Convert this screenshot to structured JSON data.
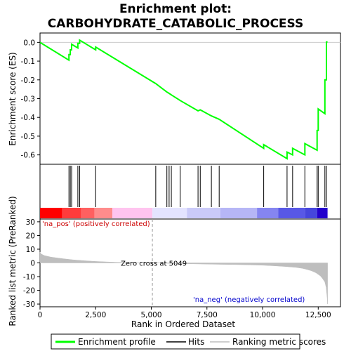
{
  "chart_data": {
    "type": "line",
    "title_line1": "Enrichment plot:",
    "title_line2": "CARBOHYDRATE_CATABOLIC_PROCESS",
    "top_panel": {
      "ylabel": "Enrichment score (ES)",
      "ylim": [
        -0.65,
        0.05
      ],
      "yticks": [
        0.0,
        -0.1,
        -0.2,
        -0.3,
        -0.4,
        -0.5,
        -0.6
      ],
      "ytick_labels": [
        "0.0",
        "-0.1",
        "-0.2",
        "-0.3",
        "-0.4",
        "-0.5",
        "-0.6"
      ],
      "series": [
        {
          "name": "Enrichment profile",
          "color": "#00ff00",
          "x": [
            0,
            1300,
            1300,
            1360,
            1360,
            1420,
            1420,
            1700,
            1700,
            1780,
            1780,
            2500,
            2500,
            5200,
            5700,
            5800,
            5900,
            6300,
            7100,
            7200,
            7700,
            8050,
            10050,
            10050,
            11100,
            11100,
            11350,
            11350,
            11900,
            11900,
            12450,
            12450,
            12500,
            12500,
            12800,
            12800,
            12870,
            12870,
            12920
          ],
          "y": [
            0.0,
            -0.095,
            -0.065,
            -0.065,
            -0.04,
            -0.04,
            -0.01,
            -0.03,
            -0.005,
            -0.005,
            0.012,
            -0.04,
            -0.025,
            -0.22,
            -0.265,
            -0.272,
            -0.28,
            -0.31,
            -0.365,
            -0.36,
            -0.392,
            -0.41,
            -0.565,
            -0.545,
            -0.62,
            -0.585,
            -0.6,
            -0.565,
            -0.6,
            -0.54,
            -0.575,
            -0.47,
            -0.47,
            -0.355,
            -0.38,
            -0.2,
            -0.2,
            0.002,
            0.002
          ]
        }
      ]
    },
    "hits": [
      1300,
      1360,
      1420,
      1700,
      1780,
      2500,
      5200,
      5700,
      5800,
      5900,
      6300,
      7100,
      7200,
      7700,
      8050,
      10050,
      11100,
      11350,
      11900,
      12450,
      12500,
      12800,
      12870
    ],
    "color_bar": {
      "segments": [
        {
          "from": 0,
          "to": 1000,
          "color": "#ff0000"
        },
        {
          "from": 1000,
          "to": 1850,
          "color": "#ff3b3b"
        },
        {
          "from": 1850,
          "to": 2450,
          "color": "#ff6060"
        },
        {
          "from": 2450,
          "to": 3250,
          "color": "#ff8c8c"
        },
        {
          "from": 3250,
          "to": 5050,
          "color": "#ffc4ef"
        },
        {
          "from": 5050,
          "to": 6600,
          "color": "#e4e4ff"
        },
        {
          "from": 6600,
          "to": 8100,
          "color": "#cacaf8"
        },
        {
          "from": 8100,
          "to": 9750,
          "color": "#b6b6f6"
        },
        {
          "from": 9750,
          "to": 10700,
          "color": "#8585f0"
        },
        {
          "from": 10700,
          "to": 11900,
          "color": "#5858e6"
        },
        {
          "from": 11900,
          "to": 12450,
          "color": "#4646dc"
        },
        {
          "from": 12450,
          "to": 12920,
          "color": "#2200cc"
        }
      ]
    },
    "bottom_panel": {
      "ylabel": "Ranked list metric (PreRanked)",
      "xlabel": "Rank in Ordered Dataset",
      "ylim": [
        -32,
        32
      ],
      "yticks": [
        30,
        20,
        10,
        0,
        -10,
        -20,
        -30
      ],
      "ytick_labels": [
        "30",
        "20",
        "10",
        "0",
        "-10",
        "-20",
        "-30"
      ],
      "metric_color": "#bebebe",
      "metric": {
        "x": [
          0,
          50,
          200,
          500,
          1000,
          1500,
          2000,
          2500,
          3000,
          3500,
          4000,
          4500,
          5049,
          5500,
          6000,
          7000,
          8000,
          9000,
          10000,
          10500,
          11000,
          11500,
          11800,
          12000,
          12200,
          12400,
          12600,
          12700,
          12800,
          12860,
          12900,
          12920
        ],
        "y": [
          8,
          6.5,
          5.3,
          4.2,
          3.1,
          2.2,
          1.6,
          1.1,
          0.7,
          0.4,
          0.2,
          0.1,
          0,
          -0.2,
          -0.4,
          -0.7,
          -1.0,
          -1.3,
          -1.7,
          -2.1,
          -2.6,
          -3.3,
          -4.0,
          -4.8,
          -5.8,
          -7.2,
          -9.5,
          -11.5,
          -14,
          -18,
          -25,
          -30
        ]
      },
      "zero_cross": 5049,
      "zero_cross_label": "Zero cross at 5049",
      "pos_label": "'na_pos' (positively correlated)",
      "neg_label": "'na_neg' (negatively correlated)"
    },
    "x_axis": {
      "xlim": [
        0,
        13500
      ],
      "xticks": [
        0,
        2500,
        5000,
        7500,
        10000,
        12500
      ],
      "xtick_labels": [
        "0",
        "2,500",
        "5,000",
        "7,500",
        "10,000",
        "12,500"
      ]
    },
    "legend": {
      "placement": "bottom",
      "entries": [
        {
          "label": "Enrichment profile",
          "color": "#00ff00"
        },
        {
          "label": "Hits",
          "color": "#000000"
        },
        {
          "label": "Ranking metric scores",
          "color": "#bebebe"
        }
      ]
    }
  }
}
